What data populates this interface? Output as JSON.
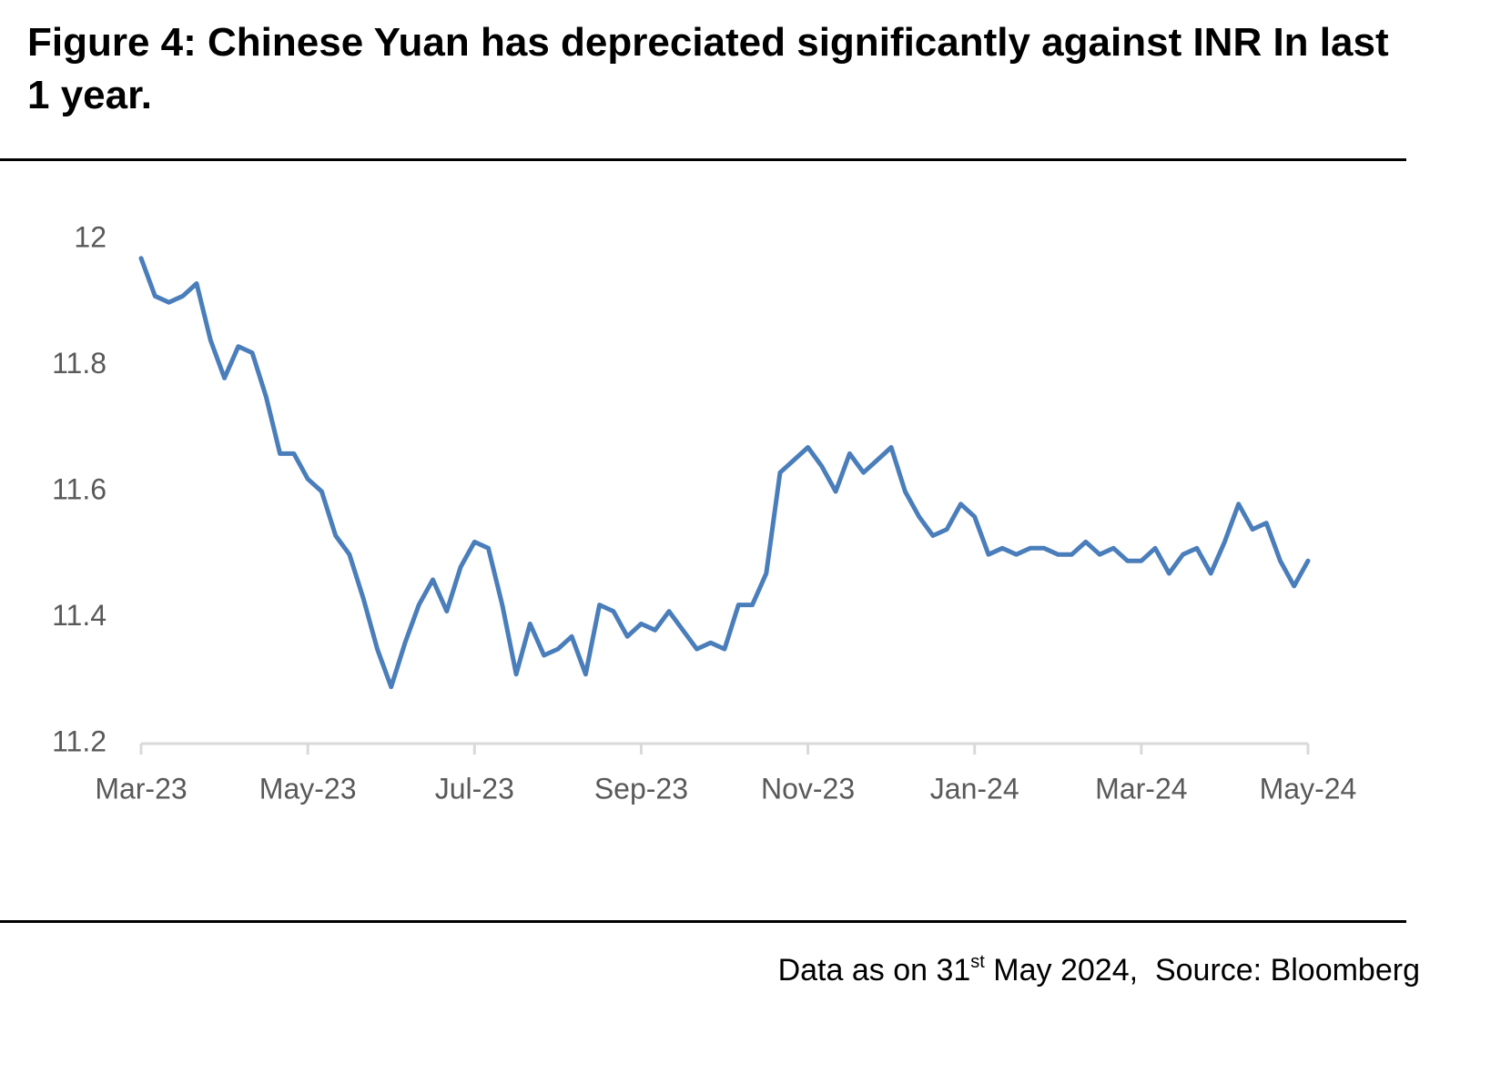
{
  "chart_data": {
    "type": "line",
    "title": "Figure 4: Chinese Yuan has depreciated significantly against INR In last 1 year.",
    "categories": [
      "Mar-23",
      null,
      null,
      null,
      null,
      null,
      null,
      null,
      null,
      null,
      null,
      null,
      "May-23",
      null,
      null,
      null,
      null,
      null,
      null,
      null,
      null,
      null,
      null,
      null,
      "Jul-23",
      null,
      null,
      null,
      null,
      null,
      null,
      null,
      null,
      null,
      null,
      null,
      "Sep-23",
      null,
      null,
      null,
      null,
      null,
      null,
      null,
      null,
      null,
      null,
      null,
      "Nov-23",
      null,
      null,
      null,
      null,
      null,
      null,
      null,
      null,
      null,
      null,
      null,
      "Jan-24",
      null,
      null,
      null,
      null,
      null,
      null,
      null,
      null,
      null,
      null,
      null,
      "Mar-24",
      null,
      null,
      null,
      null,
      null,
      null,
      null,
      null,
      null,
      null,
      null,
      "May-24"
    ],
    "values": [
      11.97,
      11.91,
      11.9,
      11.91,
      11.93,
      11.84,
      11.78,
      11.83,
      11.82,
      11.75,
      11.66,
      11.66,
      11.62,
      11.6,
      11.53,
      11.5,
      11.43,
      11.35,
      11.29,
      11.36,
      11.42,
      11.46,
      11.41,
      11.48,
      11.52,
      11.51,
      11.42,
      11.31,
      11.39,
      11.34,
      11.35,
      11.37,
      11.31,
      11.42,
      11.41,
      11.37,
      11.39,
      11.38,
      11.41,
      11.38,
      11.35,
      11.36,
      11.35,
      11.42,
      11.42,
      11.47,
      11.63,
      11.65,
      11.67,
      11.64,
      11.6,
      11.66,
      11.63,
      11.65,
      11.67,
      11.6,
      11.56,
      11.53,
      11.54,
      11.58,
      11.56,
      11.5,
      11.51,
      11.5,
      11.51,
      11.51,
      11.5,
      11.5,
      11.52,
      11.5,
      11.51,
      11.49,
      11.49,
      11.51,
      11.47,
      11.5,
      11.51,
      11.47,
      11.52,
      11.58,
      11.54,
      11.55,
      11.49,
      11.45,
      11.49
    ],
    "color": "#4a7ebb",
    "ylim": [
      11.2,
      12
    ],
    "yticks": [
      11.2,
      11.4,
      11.6,
      11.8,
      12
    ],
    "grid": false
  },
  "source": {
    "text": "Data as on 31",
    "sup": "st",
    "rest": " May 2024,  Source: Bloomberg"
  }
}
